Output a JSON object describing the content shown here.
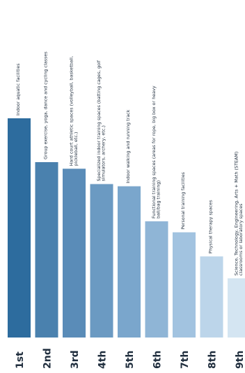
{
  "chart_data": {
    "type": "bar",
    "orientation": "vertical",
    "categories": [
      "1st",
      "2nd",
      "3rd",
      "4th",
      "5th",
      "6th",
      "7th",
      "8th",
      "9th"
    ],
    "labels": [
      "Indoor aquatic facilities",
      "Group exercise, yoga, dance and cycling classes",
      "Hard court athletic spaces (volleyball, basketball, pickleball, etc.)",
      "Specialized indoor training spaces (batting cages, golf simulators, archery, etc.)",
      "Indoor walking and running track",
      "Functional training spaces (areas for rope, big box or heavy ball/bag training)",
      "Personal training facilities",
      "Physical therapy spaces",
      "Science, Technology, Engineering, Arts + Math (STEAM) classrooms or laboratory spaces"
    ],
    "values": [
      100,
      80,
      77,
      70,
      69,
      53,
      48,
      37,
      27
    ],
    "colors": [
      "#2d6c9e",
      "#4a81ae",
      "#5a8cb8",
      "#6b9ac2",
      "#7aa6cc",
      "#8fb5d6",
      "#a2c3e0",
      "#bcd5ea",
      "#d4e5f2"
    ],
    "ylim": [
      0,
      100
    ],
    "grid": false,
    "legend": "none"
  }
}
